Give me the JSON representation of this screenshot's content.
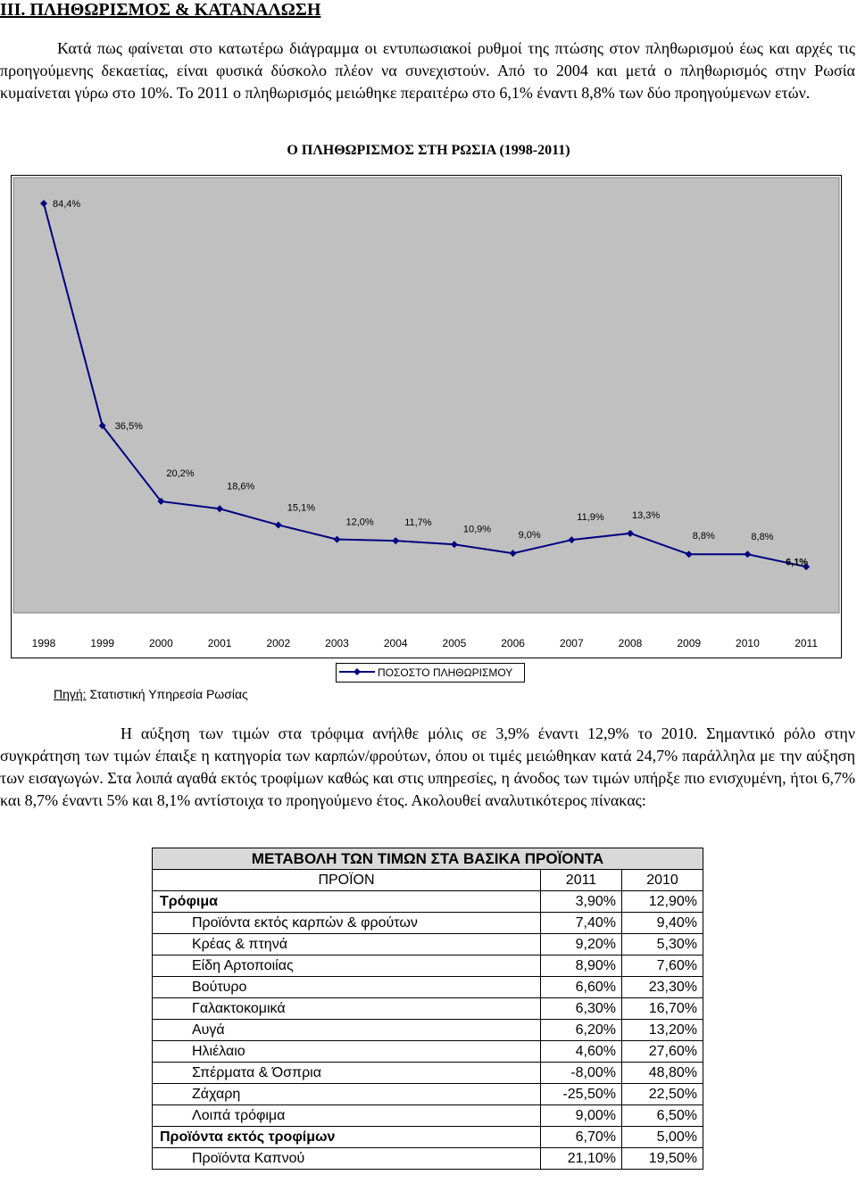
{
  "heading": "III. ΠΛΗΘΩΡΙΣΜΟΣ & ΚΑΤΑΝΑΛΩΣΗ",
  "intro_paragraph": "Κατά πως φαίνεται στο κατωτέρω διάγραμμα οι εντυπωσιακοί ρυθμοί της πτώσης στον πληθωρισμού έως και αρχές τις προηγούμενης δεκαετίας, είναι φυσικά δύσκολο πλέον να συνεχιστούν. Από το 2004 και μετά ο πληθωρισμός στην Ρωσία κυμαίνεται γύρω στο 10%. Το 2011 ο πληθωρισμός μειώθηκε περαιτέρω στο 6,1% έναντι 8,8% των δύο προηγούμενων ετών.",
  "chart_data": {
    "type": "line",
    "title": "Ο ΠΛΗΘΩΡΙΣΜΟΣ ΣΤΗ ΡΩΣΙΑ (1998-2011)",
    "categories": [
      "1998",
      "1999",
      "2000",
      "2001",
      "2002",
      "2003",
      "2004",
      "2005",
      "2006",
      "2007",
      "2008",
      "2009",
      "2010",
      "2011"
    ],
    "series": [
      {
        "name": "ΠΟΣΟΣΤΟ ΠΛΗΘΩΡΙΣΜΟΥ",
        "values": [
          84.4,
          36.5,
          20.2,
          18.6,
          15.1,
          12.0,
          11.7,
          10.9,
          9.0,
          11.9,
          13.3,
          8.8,
          8.8,
          6.1
        ],
        "labels": [
          "84,4%",
          "36,5%",
          "20,2%",
          "18,6%",
          "15,1%",
          "12,0%",
          "11,7%",
          "10,9%",
          "9,0%",
          "11,9%",
          "13,3%",
          "8,8%",
          "8,8%",
          "6,1%"
        ],
        "color": "#000080"
      }
    ],
    "ylim": [
      0,
      84.4
    ],
    "grid": false,
    "plot_background": "#c0c0c0",
    "legend": "bottom"
  },
  "source": {
    "label": "Πηγή:",
    "text": " Στατιστική Υπηρεσία Ρωσίας"
  },
  "prices_paragraph": "Η αύξηση των τιμών στα τρόφιμα ανήλθε μόλις σε 3,9% έναντι 12,9% το 2010. Σημαντικό ρόλο στην συγκράτηση των τιμών έπαιξε η κατηγορία των καρπών/φρούτων, όπου οι τιμές μειώθηκαν κατά 24,7% παράλληλα με την αύξηση των εισαγωγών. Στα λοιπά αγαθά εκτός τροφίμων καθώς και στις υπηρεσίες, η άνοδος των τιμών υπήρξε πιο ενισχυμένη, ήτοι 6,7% και 8,7% έναντι 5% και 8,1% αντίστοιχα το προηγούμενο έτος. Ακολουθεί αναλυτικότερος πίνακας:",
  "table": {
    "title": "ΜΕΤΑΒΟΛΗ ΤΩΝ ΤΙΜΩΝ ΣΤΑ ΒΑΣΙΚΑ ΠΡΟΪΟΝΤΑ",
    "columns": [
      "ΠΡΟΪΟΝ",
      "2011",
      "2010"
    ],
    "rows": [
      {
        "name": "Τρόφιμα",
        "v2011": "3,90%",
        "v2010": "12,90%"
      },
      {
        "name": "Προϊόντα εκτός καρπών & φρούτων",
        "v2011": "7,40%",
        "v2010": "9,40%"
      },
      {
        "name": "Κρέας & πτηνά",
        "v2011": "9,20%",
        "v2010": "5,30%"
      },
      {
        "name": "Είδη Αρτοποιίας",
        "v2011": "8,90%",
        "v2010": "7,60%"
      },
      {
        "name": "Βούτυρο",
        "v2011": "6,60%",
        "v2010": "23,30%"
      },
      {
        "name": "Γαλακτοκομικά",
        "v2011": "6,30%",
        "v2010": "16,70%"
      },
      {
        "name": "Αυγά",
        "v2011": "6,20%",
        "v2010": "13,20%"
      },
      {
        "name": "Ηλιέλαιο",
        "v2011": "4,60%",
        "v2010": "27,60%"
      },
      {
        "name": "Σπέρματα & Όσπρια",
        "v2011": "-8,00%",
        "v2010": "48,80%"
      },
      {
        "name": "Ζάχαρη",
        "v2011": "-25,50%",
        "v2010": "22,50%"
      },
      {
        "name": "Λοιπά τρόφιμα",
        "v2011": "9,00%",
        "v2010": "6,50%"
      },
      {
        "name": "Προϊόντα εκτός τροφίμων",
        "v2011": "6,70%",
        "v2010": "5,00%"
      },
      {
        "name": "Προϊόντα Καπνού",
        "v2011": "21,10%",
        "v2010": "19,50%"
      }
    ]
  }
}
